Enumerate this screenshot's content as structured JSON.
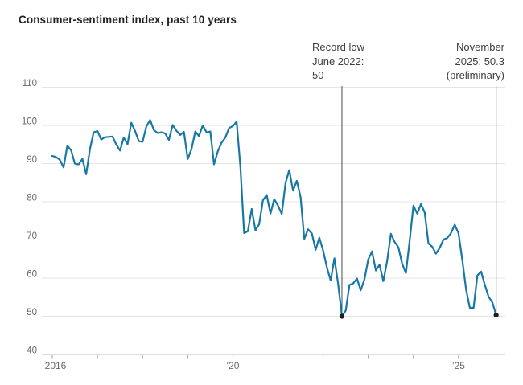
{
  "title": "Consumer-sentiment index, past 10 years",
  "annotations": {
    "record_low": {
      "line1": "Record low",
      "line2": "June 2022:",
      "line3": "50"
    },
    "latest": {
      "line1": "November",
      "line2": "2025: 50.3",
      "line3": "(preliminary)"
    }
  },
  "chart_data": {
    "type": "line",
    "title": "Consumer-sentiment index, past 10 years",
    "x_start": "2016-01",
    "x_end": "2025-11",
    "frequency": "monthly",
    "ylim": [
      40,
      110
    ],
    "y_ticks": [
      40,
      50,
      60,
      70,
      80,
      90,
      100,
      110
    ],
    "x_ticks": [
      {
        "year": 2016,
        "label": "2016"
      },
      {
        "year": 2017,
        "label": ""
      },
      {
        "year": 2018,
        "label": ""
      },
      {
        "year": 2019,
        "label": ""
      },
      {
        "year": 2020,
        "label": "’20"
      },
      {
        "year": 2021,
        "label": ""
      },
      {
        "year": 2022,
        "label": ""
      },
      {
        "year": 2023,
        "label": ""
      },
      {
        "year": 2024,
        "label": ""
      },
      {
        "year": 2025,
        "label": "’25"
      }
    ],
    "grid": true,
    "legend_position": "none",
    "series": [
      {
        "name": "Consumer-sentiment index",
        "values": [
          92.0,
          91.7,
          91.0,
          89.0,
          94.7,
          93.5,
          90.0,
          89.8,
          91.2,
          87.2,
          93.8,
          98.2,
          98.5,
          96.3,
          96.9,
          97.0,
          97.1,
          95.0,
          93.4,
          96.8,
          95.1,
          100.7,
          98.5,
          95.9,
          95.7,
          99.7,
          101.4,
          98.8,
          98.0,
          98.2,
          97.9,
          96.2,
          100.1,
          98.6,
          97.5,
          98.3,
          91.2,
          93.8,
          98.4,
          97.2,
          100.0,
          98.2,
          98.4,
          89.8,
          93.2,
          95.5,
          96.8,
          99.3,
          99.8,
          101.0,
          89.1,
          71.8,
          72.3,
          78.1,
          72.5,
          74.1,
          80.4,
          81.8,
          76.9,
          80.7,
          79.0,
          76.8,
          84.9,
          88.3,
          82.9,
          85.5,
          81.2,
          70.3,
          72.8,
          71.7,
          67.4,
          70.6,
          67.2,
          62.8,
          59.4,
          65.2,
          58.4,
          50.0,
          51.5,
          58.2,
          58.6,
          59.9,
          56.8,
          59.7,
          64.9,
          67.0,
          62.0,
          63.5,
          59.2,
          64.4,
          71.6,
          69.5,
          68.1,
          63.8,
          61.3,
          69.7,
          79.0,
          76.9,
          79.4,
          77.2,
          69.1,
          68.2,
          66.4,
          67.9,
          70.1,
          70.5,
          71.8,
          74.0,
          71.7,
          64.7,
          57.0,
          52.2,
          52.2,
          60.7,
          61.7,
          58.2,
          55.1,
          53.6,
          50.3
        ]
      }
    ],
    "markers": [
      {
        "name": "record-low",
        "label": "Record low June 2022: 50",
        "month_index": 77,
        "value": 50
      },
      {
        "name": "latest-preliminary",
        "label": "November 2025: 50.3 (preliminary)",
        "month_index": 118,
        "value": 50.3
      }
    ],
    "colors": {
      "line": "#1878a5",
      "marker_dot": "#1e1e1e",
      "reference_line": "#4a4a4a",
      "grid": "#e5e5e5",
      "axis": "#bbbbbb",
      "tick": "#9a9a9a",
      "axis_label": "#696969"
    }
  }
}
